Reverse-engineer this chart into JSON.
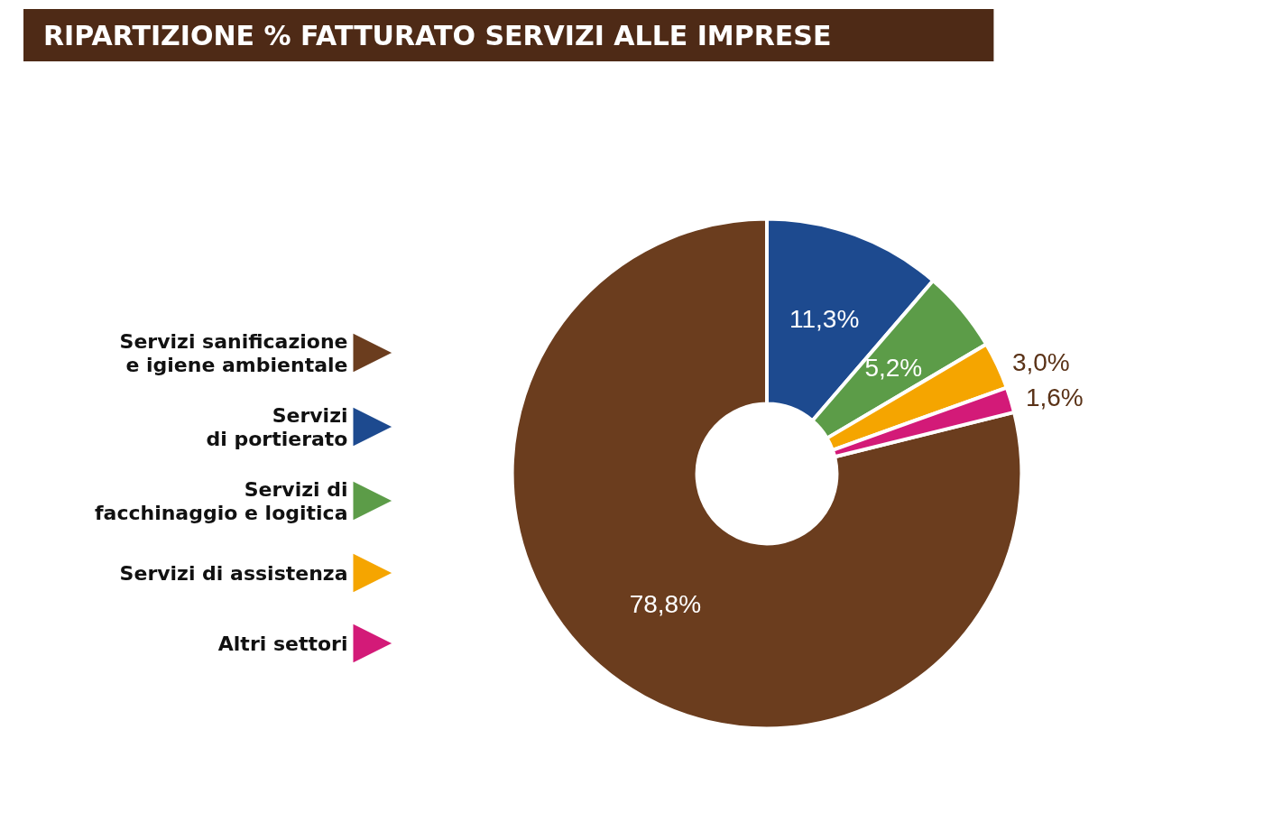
{
  "chart_data": {
    "type": "donut",
    "title": "RIPARTIZIONE % FATTURATO SERVIZI ALLE IMPRESE",
    "categories": [
      "Servizi sanificazione\ne igiene ambientale",
      "Servizi\ndi portierato",
      "Servizi di\nfacchinaggio e logitica",
      "Servizi di assistenza",
      "Altri settori"
    ],
    "values": [
      78.8,
      11.3,
      5.2,
      3.0,
      1.6
    ],
    "value_labels": [
      "78,8%",
      "11,3%",
      "5,2%",
      "3,0%",
      "1,6%"
    ],
    "colors": [
      "#6b3d1e",
      "#1d4a8f",
      "#5c9c48",
      "#f5a500",
      "#d31a78"
    ],
    "legend": "left"
  }
}
